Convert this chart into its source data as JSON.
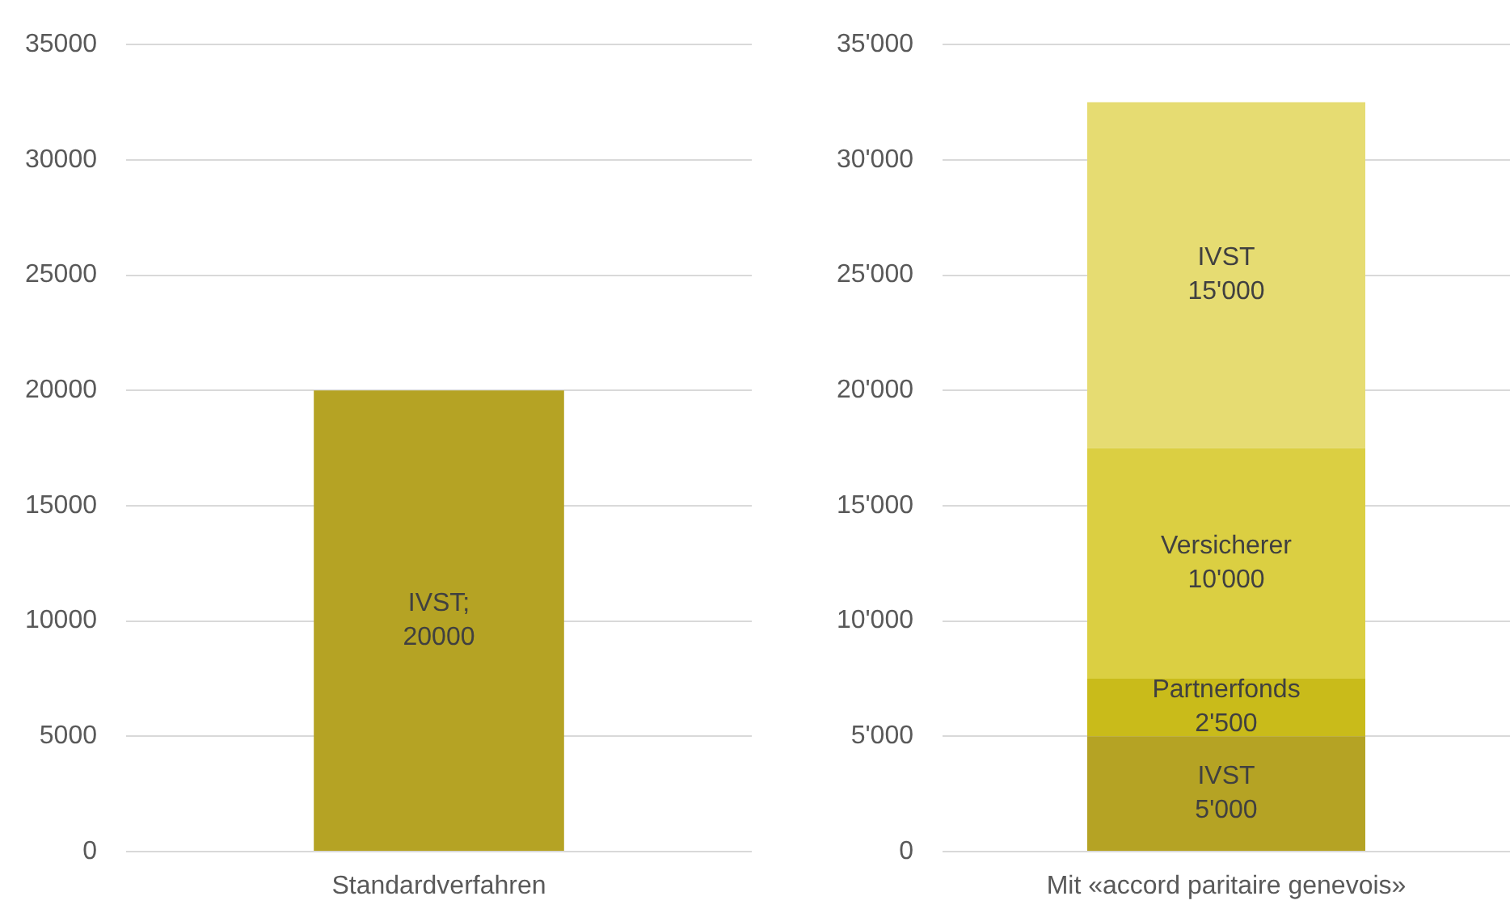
{
  "chart_data": [
    {
      "type": "bar",
      "categories": [
        "Standardverfahren"
      ],
      "series": [
        {
          "color": "#b5a324",
          "values": [
            20000
          ],
          "value_labels": [
            "IVST; 20000"
          ]
        }
      ],
      "ylim": [
        0,
        35000
      ],
      "yticks": [
        0,
        5000,
        10000,
        15000,
        20000,
        25000,
        30000,
        35000
      ],
      "grid": "y"
    },
    {
      "type": "bar",
      "stacked": true,
      "categories": [
        "Mit «accord paritaire genevois»"
      ],
      "series": [
        {
          "color": "#b5a324",
          "values": [
            5000
          ],
          "value_labels": [
            "IVST 5'000"
          ]
        },
        {
          "color": "#c9bb1a",
          "values": [
            2500
          ],
          "value_labels": [
            "Partnerfonds 2'500"
          ]
        },
        {
          "color": "#dbcf42",
          "values": [
            10000
          ],
          "value_labels": [
            "Versicherer 10'000"
          ]
        },
        {
          "color": "#e6dc72",
          "values": [
            15000
          ],
          "value_labels": [
            "IVST 15'000"
          ]
        }
      ],
      "ylim": [
        0,
        35000
      ],
      "yticks": [
        0,
        {
          "value": 5000,
          "label": "5'000"
        },
        {
          "value": 10000,
          "label": "10'000"
        },
        {
          "value": 15000,
          "label": "15'000"
        },
        {
          "value": 20000,
          "label": "20'000"
        },
        {
          "value": 25000,
          "label": "25'000"
        },
        {
          "value": 30000,
          "label": "30'000"
        },
        {
          "value": 35000,
          "label": "35'000"
        }
      ],
      "grid": "y"
    }
  ]
}
